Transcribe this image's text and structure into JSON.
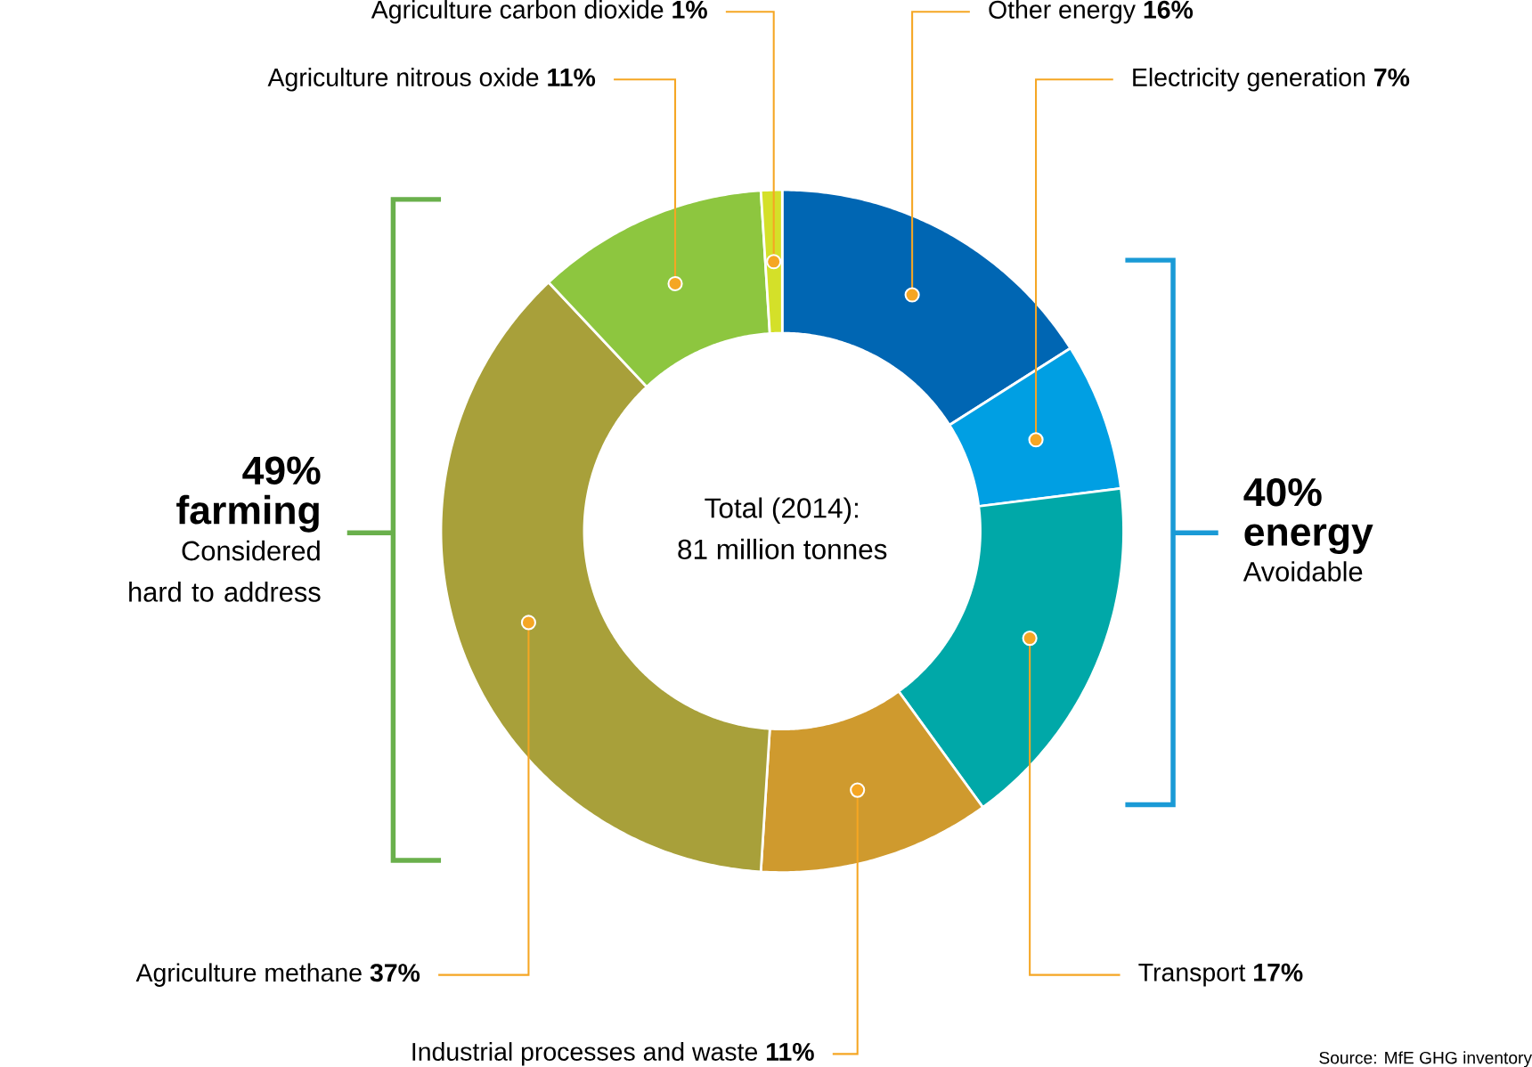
{
  "chart_data": {
    "type": "donut",
    "title": "Total (2014):",
    "subtitle": "81 million tonnes",
    "categories": [
      "Other energy",
      "Electricity generation",
      "Transport",
      "Industrial processes and waste",
      "Agriculture methane",
      "Agriculture nitrous oxide",
      "Agriculture carbon dioxide"
    ],
    "values": [
      16,
      7,
      17,
      11,
      37,
      11,
      1
    ],
    "value_labels": [
      "16%",
      "7%",
      "17%",
      "11%",
      "37%",
      "11%",
      "1%"
    ],
    "colors": [
      "#0066b3",
      "#009fe3",
      "#00a8a8",
      "#cf9a2e",
      "#a8a03a",
      "#8dc63f",
      "#d4e029"
    ],
    "annotations": [
      "49% farming",
      "Considered hard to address",
      "40% energy",
      "Avoidable",
      "Source: MfE GHG inventory"
    ]
  }
}
